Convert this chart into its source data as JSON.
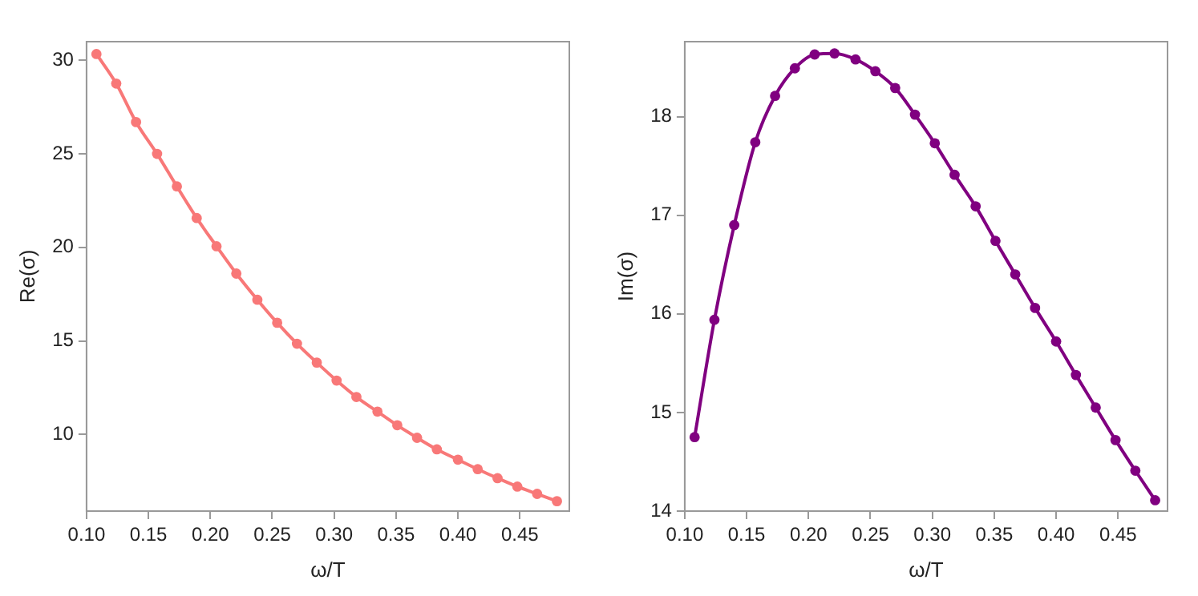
{
  "chart_data": [
    {
      "type": "line",
      "xlabel": "ω/T",
      "ylabel": "Re(σ)",
      "marker": "circle",
      "grid": false,
      "legend": false,
      "x": [
        0.108,
        0.124,
        0.14,
        0.157,
        0.173,
        0.189,
        0.205,
        0.221,
        0.238,
        0.254,
        0.27,
        0.286,
        0.302,
        0.318,
        0.335,
        0.351,
        0.367,
        0.383,
        0.4,
        0.416,
        0.432,
        0.448,
        0.464,
        0.48
      ],
      "xlim": [
        0.1,
        0.49
      ],
      "xticks": [
        {
          "value": 0.1,
          "label": "0.10"
        },
        0.15,
        {
          "value": 0.2,
          "label": "0.20"
        },
        0.25,
        {
          "value": 0.3,
          "label": "0.30"
        },
        0.35,
        {
          "value": 0.4,
          "label": "0.40"
        },
        0.45
      ],
      "ylim": [
        5.9,
        31
      ],
      "yticks": [
        10,
        15,
        20,
        25,
        30
      ],
      "series": [
        {
          "color": "#f87878",
          "values": [
            30.34,
            28.76,
            26.7,
            25.0,
            23.26,
            21.57,
            20.06,
            18.6,
            17.2,
            15.97,
            14.85,
            13.84,
            12.88,
            12.0,
            11.22,
            10.49,
            9.82,
            9.2,
            8.65,
            8.14,
            7.66,
            7.21,
            6.82,
            6.43
          ]
        }
      ]
    },
    {
      "type": "line",
      "xlabel": "ω/T",
      "ylabel": "Im(σ)",
      "marker": "circle",
      "grid": false,
      "legend": false,
      "x": [
        0.108,
        0.124,
        0.14,
        0.157,
        0.173,
        0.189,
        0.205,
        0.221,
        0.238,
        0.254,
        0.27,
        0.286,
        0.302,
        0.318,
        0.335,
        0.351,
        0.367,
        0.383,
        0.4,
        0.416,
        0.432,
        0.448,
        0.464,
        0.48
      ],
      "xlim": [
        0.1,
        0.49
      ],
      "xticks": [
        {
          "value": 0.1,
          "label": "0.10"
        },
        0.15,
        {
          "value": 0.2,
          "label": "0.20"
        },
        0.25,
        {
          "value": 0.3,
          "label": "0.30"
        },
        0.35,
        {
          "value": 0.4,
          "label": "0.40"
        },
        0.45
      ],
      "ylim": [
        14,
        18.76
      ],
      "yticks": [
        14,
        15,
        16,
        17,
        18
      ],
      "series": [
        {
          "color": "#800080",
          "values": [
            14.75,
            15.94,
            16.9,
            17.74,
            18.21,
            18.49,
            18.63,
            18.64,
            18.58,
            18.46,
            18.29,
            18.02,
            17.73,
            17.41,
            17.09,
            16.74,
            16.4,
            16.06,
            15.72,
            15.38,
            15.05,
            14.72,
            14.41,
            14.11
          ]
        }
      ]
    }
  ]
}
